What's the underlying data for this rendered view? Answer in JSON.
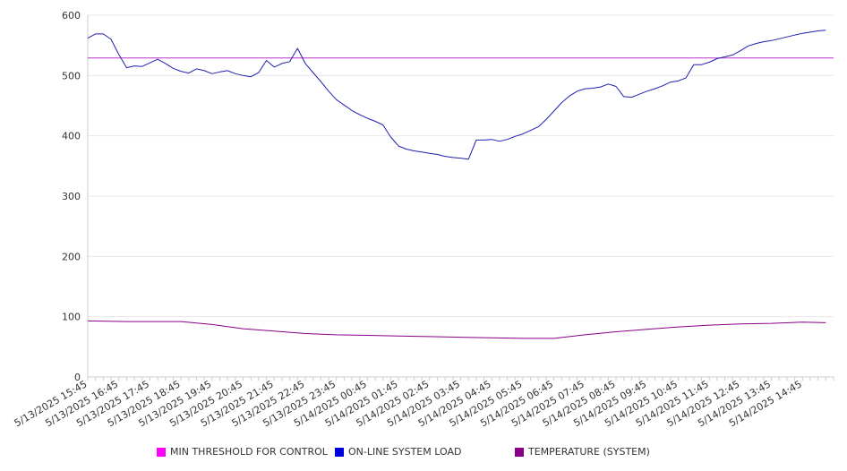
{
  "chart_data": {
    "type": "line",
    "ylim": [
      0,
      600
    ],
    "y_ticks": [
      "0",
      "100",
      "200",
      "300",
      "400",
      "500",
      "600"
    ],
    "x_tick_labels": [
      "5/13/2025 15:45",
      "5/13/2025 16:45",
      "5/13/2025 17:45",
      "5/13/2025 18:45",
      "5/13/2025 19:45",
      "5/13/2025 20:45",
      "5/13/2025 21:45",
      "5/13/2025 22:45",
      "5/13/2025 23:45",
      "5/14/2025 00:45",
      "5/14/2025 01:45",
      "5/14/2025 02:45",
      "5/14/2025 03:45",
      "5/14/2025 04:45",
      "5/14/2025 05:45",
      "5/14/2025 06:45",
      "5/14/2025 07:45",
      "5/14/2025 08:45",
      "5/14/2025 09:45",
      "5/14/2025 10:45",
      "5/14/2025 11:45",
      "5/14/2025 12:45",
      "5/14/2025 13:45",
      "5/14/2025 14:45"
    ],
    "x_start": "5/13/2025 15:45",
    "x_end": "5/14/2025 15:45",
    "legend_position": "bottom",
    "grid": "horizontal",
    "series": [
      {
        "name": "MIN THRESHOLD FOR CONTROL",
        "color": "#ff00ff",
        "line_color": "#bb33cc",
        "points": [
          [
            "5/13/2025 15:45",
            529
          ],
          [
            "5/14/2025 15:45",
            529
          ]
        ]
      },
      {
        "name": "ON-LINE SYSTEM LOAD",
        "color": "#0000dd",
        "line_color": "#1f1fb0",
        "points": [
          [
            "5/13/2025 15:45",
            562
          ],
          [
            "5/13/2025 16:00",
            569
          ],
          [
            "5/13/2025 16:15",
            569
          ],
          [
            "5/13/2025 16:30",
            560
          ],
          [
            "5/13/2025 16:45",
            535
          ],
          [
            "5/13/2025 17:00",
            513
          ],
          [
            "5/13/2025 17:15",
            516
          ],
          [
            "5/13/2025 17:30",
            515
          ],
          [
            "5/13/2025 17:45",
            521
          ],
          [
            "5/13/2025 18:00",
            527
          ],
          [
            "5/13/2025 18:15",
            520
          ],
          [
            "5/13/2025 18:30",
            512
          ],
          [
            "5/13/2025 18:45",
            507
          ],
          [
            "5/13/2025 19:00",
            504
          ],
          [
            "5/13/2025 19:15",
            511
          ],
          [
            "5/13/2025 19:30",
            508
          ],
          [
            "5/13/2025 19:45",
            503
          ],
          [
            "5/13/2025 20:00",
            506
          ],
          [
            "5/13/2025 20:15",
            508
          ],
          [
            "5/13/2025 20:30",
            503
          ],
          [
            "5/13/2025 20:45",
            500
          ],
          [
            "5/13/2025 21:00",
            498
          ],
          [
            "5/13/2025 21:15",
            505
          ],
          [
            "5/13/2025 21:30",
            525
          ],
          [
            "5/13/2025 21:45",
            514
          ],
          [
            "5/13/2025 22:00",
            520
          ],
          [
            "5/13/2025 22:15",
            523
          ],
          [
            "5/13/2025 22:30",
            545
          ],
          [
            "5/13/2025 22:45",
            520
          ],
          [
            "5/13/2025 23:00",
            505
          ],
          [
            "5/13/2025 23:15",
            490
          ],
          [
            "5/13/2025 23:30",
            474
          ],
          [
            "5/13/2025 23:45",
            460
          ],
          [
            "5/14/2025 00:00",
            451
          ],
          [
            "5/14/2025 00:15",
            442
          ],
          [
            "5/14/2025 00:30",
            435
          ],
          [
            "5/14/2025 00:45",
            429
          ],
          [
            "5/14/2025 01:00",
            424
          ],
          [
            "5/14/2025 01:15",
            418
          ],
          [
            "5/14/2025 01:30",
            398
          ],
          [
            "5/14/2025 01:45",
            383
          ],
          [
            "5/14/2025 02:00",
            378
          ],
          [
            "5/14/2025 02:15",
            375
          ],
          [
            "5/14/2025 02:30",
            373
          ],
          [
            "5/14/2025 02:45",
            371
          ],
          [
            "5/14/2025 03:00",
            369
          ],
          [
            "5/14/2025 03:15",
            366
          ],
          [
            "5/14/2025 03:30",
            364
          ],
          [
            "5/14/2025 03:45",
            363
          ],
          [
            "5/14/2025 04:00",
            361
          ],
          [
            "5/14/2025 04:15",
            393
          ],
          [
            "5/14/2025 04:30",
            393
          ],
          [
            "5/14/2025 04:45",
            394
          ],
          [
            "5/14/2025 05:00",
            391
          ],
          [
            "5/14/2025 05:15",
            394
          ],
          [
            "5/14/2025 05:30",
            399
          ],
          [
            "5/14/2025 05:45",
            403
          ],
          [
            "5/14/2025 06:00",
            409
          ],
          [
            "5/14/2025 06:15",
            415
          ],
          [
            "5/14/2025 06:30",
            427
          ],
          [
            "5/14/2025 06:45",
            441
          ],
          [
            "5/14/2025 07:00",
            455
          ],
          [
            "5/14/2025 07:15",
            466
          ],
          [
            "5/14/2025 07:30",
            474
          ],
          [
            "5/14/2025 07:45",
            478
          ],
          [
            "5/14/2025 08:00",
            479
          ],
          [
            "5/14/2025 08:15",
            481
          ],
          [
            "5/14/2025 08:30",
            486
          ],
          [
            "5/14/2025 08:45",
            482
          ],
          [
            "5/14/2025 09:00",
            465
          ],
          [
            "5/14/2025 09:15",
            464
          ],
          [
            "5/14/2025 09:30",
            469
          ],
          [
            "5/14/2025 09:45",
            474
          ],
          [
            "5/14/2025 10:00",
            478
          ],
          [
            "5/14/2025 10:15",
            483
          ],
          [
            "5/14/2025 10:30",
            489
          ],
          [
            "5/14/2025 10:45",
            491
          ],
          [
            "5/14/2025 11:00",
            496
          ],
          [
            "5/14/2025 11:15",
            518
          ],
          [
            "5/14/2025 11:30",
            518
          ],
          [
            "5/14/2025 11:45",
            522
          ],
          [
            "5/14/2025 12:00",
            528
          ],
          [
            "5/14/2025 12:15",
            531
          ],
          [
            "5/14/2025 12:30",
            534
          ],
          [
            "5/14/2025 12:45",
            541
          ],
          [
            "5/14/2025 13:00",
            549
          ],
          [
            "5/14/2025 13:15",
            553
          ],
          [
            "5/14/2025 13:30",
            556
          ],
          [
            "5/14/2025 13:45",
            558
          ],
          [
            "5/14/2025 14:00",
            561
          ],
          [
            "5/14/2025 14:15",
            564
          ],
          [
            "5/14/2025 14:30",
            567
          ],
          [
            "5/14/2025 14:45",
            570
          ],
          [
            "5/14/2025 15:00",
            572
          ],
          [
            "5/14/2025 15:15",
            574
          ],
          [
            "5/14/2025 15:30",
            575
          ]
        ]
      },
      {
        "name": "TEMPERATURE (SYSTEM)",
        "color": "#880088",
        "line_color": "#880088",
        "points": [
          [
            "5/13/2025 15:45",
            93
          ],
          [
            "5/13/2025 17:00",
            92
          ],
          [
            "5/13/2025 18:45",
            92
          ],
          [
            "5/13/2025 19:45",
            87
          ],
          [
            "5/13/2025 20:45",
            80
          ],
          [
            "5/13/2025 21:45",
            76
          ],
          [
            "5/13/2025 22:45",
            72
          ],
          [
            "5/13/2025 23:45",
            70
          ],
          [
            "5/14/2025 00:45",
            69
          ],
          [
            "5/14/2025 01:45",
            68
          ],
          [
            "5/14/2025 02:45",
            67
          ],
          [
            "5/14/2025 03:45",
            66
          ],
          [
            "5/14/2025 04:45",
            65
          ],
          [
            "5/14/2025 05:45",
            64
          ],
          [
            "5/14/2025 06:45",
            64
          ],
          [
            "5/14/2025 07:45",
            70
          ],
          [
            "5/14/2025 08:45",
            75
          ],
          [
            "5/14/2025 09:45",
            79
          ],
          [
            "5/14/2025 10:45",
            83
          ],
          [
            "5/14/2025 11:45",
            86
          ],
          [
            "5/14/2025 12:45",
            88
          ],
          [
            "5/14/2025 13:45",
            89
          ],
          [
            "5/14/2025 14:45",
            91
          ],
          [
            "5/14/2025 15:30",
            90
          ]
        ]
      }
    ]
  }
}
